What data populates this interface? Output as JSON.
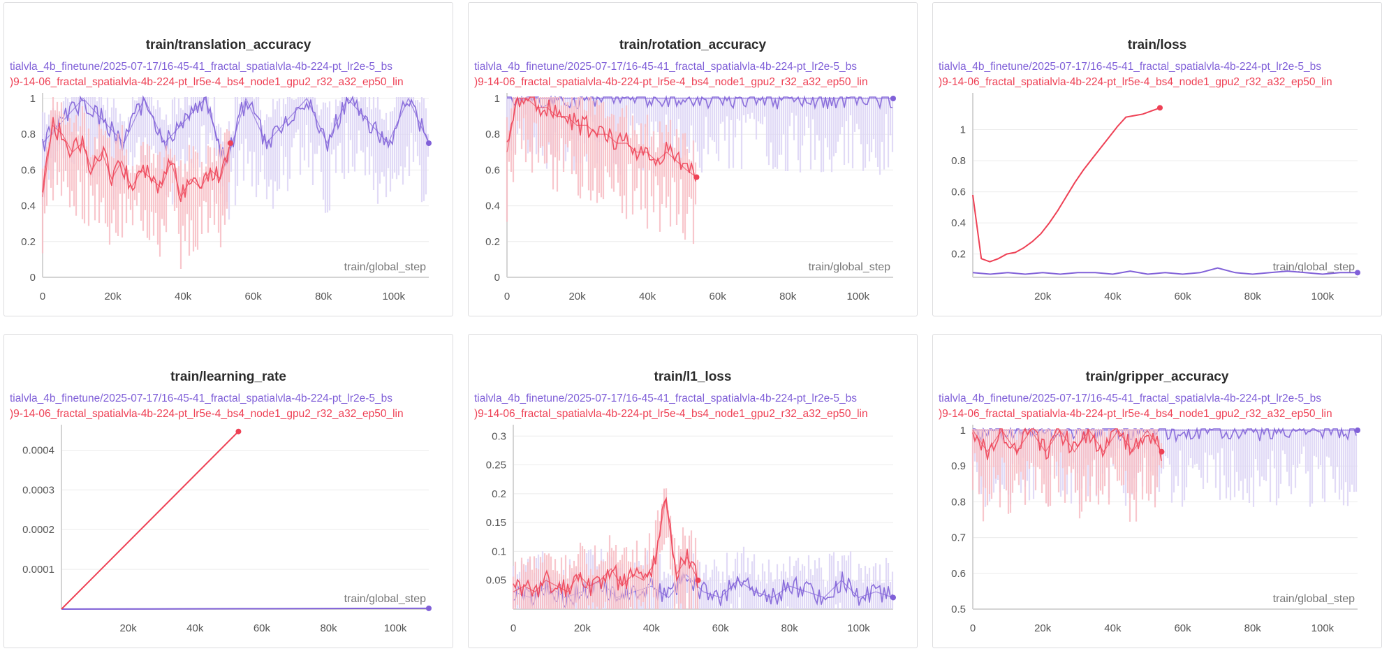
{
  "colors": {
    "purple": "#8060d8",
    "purple_light": "#dcd3f5",
    "red": "#ee4155",
    "red_light": "#f7bcc3",
    "grid": "#ececec"
  },
  "legend": {
    "purple_run": "tialvla_4b_finetune/2025-07-17/16-45-41_fractal_spatialvla-4b-224-pt_lr2e-5_bs",
    "red_run": ")9-14-06_fractal_spatialvla-4b-224-pt_lr5e-4_bs4_node1_gpu2_r32_a32_ep50_lin"
  },
  "chart_data": [
    {
      "id": "translation_accuracy",
      "type": "line",
      "title": "train/translation_accuracy",
      "xlabel": "train/global_step",
      "xlim": [
        0,
        110000
      ],
      "ylim": [
        0,
        1
      ],
      "xticks": [
        0,
        20000,
        40000,
        60000,
        80000,
        100000
      ],
      "xtick_labels": [
        "0",
        "20k",
        "40k",
        "60k",
        "80k",
        "100k"
      ],
      "yticks": [
        0,
        0.2,
        0.4,
        0.6,
        0.8,
        1
      ],
      "ytick_labels": [
        "0",
        "0.2",
        "0.4",
        "0.6",
        "0.8",
        "1"
      ],
      "series": [
        {
          "name": "purple_run",
          "color": "#8060d8",
          "x_end": 110000,
          "last": 0.75,
          "values": [
            0.75,
            0.875,
            1.0,
            0.875,
            0.75,
            1.0,
            0.75,
            0.875,
            1.0,
            0.625,
            1.0,
            0.75,
            0.875,
            1.0,
            0.75,
            1.0,
            0.875,
            0.75,
            1.0,
            0.75
          ]
        },
        {
          "name": "red_run",
          "color": "#ee4155",
          "x_end": 53500,
          "last": 0.75,
          "values": [
            0.45,
            0.85,
            0.8,
            0.7,
            0.75,
            0.6,
            0.7,
            0.55,
            0.65,
            0.5,
            0.6,
            0.55,
            0.5,
            0.65,
            0.45,
            0.55,
            0.5,
            0.6,
            0.55,
            0.75
          ]
        }
      ]
    },
    {
      "id": "rotation_accuracy",
      "type": "line",
      "title": "train/rotation_accuracy",
      "xlabel": "train/global_step",
      "xlim": [
        0,
        110000
      ],
      "ylim": [
        0,
        1
      ],
      "xticks": [
        0,
        20000,
        40000,
        60000,
        80000,
        100000
      ],
      "xtick_labels": [
        "0",
        "20k",
        "40k",
        "60k",
        "80k",
        "100k"
      ],
      "yticks": [
        0,
        0.2,
        0.4,
        0.6,
        0.8,
        1
      ],
      "ytick_labels": [
        "0",
        "0.2",
        "0.4",
        "0.6",
        "0.8",
        "1"
      ],
      "series": [
        {
          "name": "purple_run",
          "color": "#8060d8",
          "x_end": 110000,
          "last": 1.0,
          "values": [
            1.0,
            1.0,
            1.0,
            1.0,
            1.0,
            1.0,
            1.0,
            1.0,
            1.0,
            1.0,
            1.0,
            1.0,
            1.0,
            1.0,
            1.0,
            1.0,
            1.0,
            1.0,
            1.0,
            1.0
          ]
        },
        {
          "name": "red_run",
          "color": "#ee4155",
          "x_end": 54000,
          "last": 0.56,
          "values": [
            0.7,
            1.0,
            1.0,
            0.95,
            0.95,
            0.9,
            0.9,
            0.85,
            0.85,
            0.8,
            0.8,
            0.75,
            0.75,
            0.7,
            0.7,
            0.65,
            0.7,
            0.65,
            0.6,
            0.56
          ]
        }
      ]
    },
    {
      "id": "loss",
      "type": "line",
      "title": "train/loss",
      "xlabel": "train/global_step",
      "xlim": [
        0,
        110000
      ],
      "ylim": [
        0.05,
        1.2
      ],
      "xticks": [
        20000,
        40000,
        60000,
        80000,
        100000
      ],
      "xtick_labels": [
        "20k",
        "40k",
        "60k",
        "80k",
        "100k"
      ],
      "yticks": [
        0.2,
        0.4,
        0.6,
        0.8,
        1
      ],
      "ytick_labels": [
        "0.2",
        "0.4",
        "0.6",
        "0.8",
        "1"
      ],
      "series": [
        {
          "name": "purple_run",
          "color": "#8060d8",
          "x_end": 110000,
          "last": 0.08,
          "values": [
            0.08,
            0.07,
            0.08,
            0.07,
            0.08,
            0.07,
            0.08,
            0.08,
            0.07,
            0.09,
            0.07,
            0.08,
            0.07,
            0.08,
            0.11,
            0.08,
            0.07,
            0.08,
            0.09,
            0.08,
            0.07,
            0.08,
            0.08
          ]
        },
        {
          "name": "red_run",
          "color": "#ee4155",
          "x_end": 53500,
          "last": 1.14,
          "values": [
            0.58,
            0.17,
            0.15,
            0.17,
            0.2,
            0.21,
            0.24,
            0.28,
            0.33,
            0.4,
            0.48,
            0.57,
            0.66,
            0.74,
            0.81,
            0.88,
            0.95,
            1.02,
            1.08,
            1.09,
            1.1,
            1.12,
            1.14
          ]
        }
      ]
    },
    {
      "id": "learning_rate",
      "type": "line",
      "title": "train/learning_rate",
      "xlabel": "train/global_step",
      "xlim": [
        0,
        110000
      ],
      "ylim": [
        0,
        0.00045
      ],
      "xticks": [
        20000,
        40000,
        60000,
        80000,
        100000
      ],
      "xtick_labels": [
        "20k",
        "40k",
        "60k",
        "80k",
        "100k"
      ],
      "yticks": [
        0.0001,
        0.0002,
        0.0003,
        0.0004
      ],
      "ytick_labels": [
        "0.0001",
        "0.0002",
        "0.0003",
        "0.0004"
      ],
      "series": [
        {
          "name": "purple_run",
          "color": "#8060d8",
          "x_end": 110000,
          "last": 2e-06,
          "values": [
            0,
            5e-07,
            1e-06,
            1.5e-06,
            2e-06
          ]
        },
        {
          "name": "red_run",
          "color": "#ee4155",
          "x_end": 53000,
          "last": 0.000447,
          "values": [
            0,
            0.000447
          ]
        }
      ]
    },
    {
      "id": "l1_loss",
      "type": "line",
      "title": "train/l1_loss",
      "xlabel": "",
      "xlim": [
        0,
        110000
      ],
      "ylim": [
        0,
        0.31
      ],
      "xticks": [
        0,
        20000,
        40000,
        60000,
        80000,
        100000
      ],
      "xtick_labels": [
        "0",
        "20k",
        "40k",
        "60k",
        "80k",
        "100k"
      ],
      "yticks": [
        0.05,
        0.1,
        0.15,
        0.2,
        0.25,
        0.3
      ],
      "ytick_labels": [
        "0.05",
        "0.1",
        "0.15",
        "0.2",
        "0.25",
        "0.3"
      ],
      "series": [
        {
          "name": "purple_run",
          "color": "#8060d8",
          "x_end": 110000,
          "last": 0.02,
          "values": [
            0.03,
            0.02,
            0.04,
            0.02,
            0.03,
            0.05,
            0.02,
            0.03,
            0.04,
            0.02,
            0.06,
            0.03,
            0.02,
            0.05,
            0.03,
            0.02,
            0.04,
            0.03,
            0.02,
            0.05,
            0.02,
            0.03,
            0.02
          ]
        },
        {
          "name": "red_run",
          "color": "#ee4155",
          "x_end": 53500,
          "last": 0.05,
          "values": [
            0.03,
            0.04,
            0.03,
            0.05,
            0.04,
            0.03,
            0.06,
            0.04,
            0.05,
            0.07,
            0.04,
            0.06,
            0.05,
            0.08,
            0.19,
            0.06,
            0.09,
            0.05
          ]
        }
      ]
    },
    {
      "id": "gripper_accuracy",
      "type": "line",
      "title": "train/gripper_accuracy",
      "xlabel": "train/global_step",
      "xlim": [
        0,
        110000
      ],
      "ylim": [
        0.5,
        1
      ],
      "xticks": [
        0,
        20000,
        40000,
        60000,
        80000,
        100000
      ],
      "xtick_labels": [
        "0",
        "20k",
        "40k",
        "60k",
        "80k",
        "100k"
      ],
      "yticks": [
        0.5,
        0.6,
        0.7,
        0.8,
        0.9,
        1
      ],
      "ytick_labels": [
        "0.5",
        "0.6",
        "0.7",
        "0.8",
        "0.9",
        "1"
      ],
      "series": [
        {
          "name": "purple_run",
          "color": "#8060d8",
          "x_end": 110000,
          "last": 1.0,
          "values": [
            1.0,
            1.0,
            1.0,
            1.0,
            1.0,
            1.0,
            1.0,
            1.0,
            1.0,
            1.0,
            1.0,
            1.0,
            1.0,
            1.0,
            1.0,
            1.0
          ]
        },
        {
          "name": "red_run",
          "color": "#ee4155",
          "x_end": 54000,
          "last": 0.94,
          "values": [
            1.0,
            0.94,
            1.0,
            0.94,
            1.0,
            0.94,
            1.0,
            0.94,
            1.0,
            0.94,
            1.0,
            0.94,
            1.0,
            0.94
          ]
        }
      ]
    }
  ]
}
